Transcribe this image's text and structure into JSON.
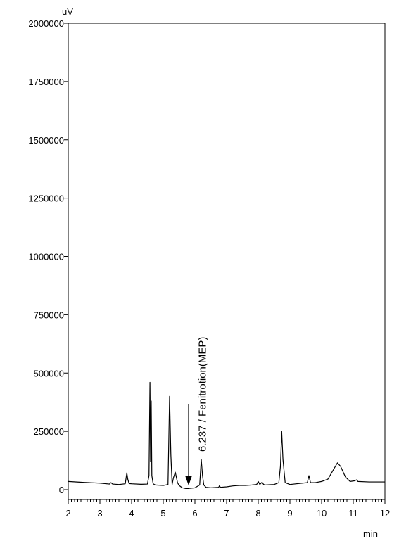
{
  "chart_data": {
    "type": "line",
    "title": "",
    "xlabel": "min",
    "ylabel": "uV",
    "xlim": [
      2,
      12
    ],
    "ylim": [
      0,
      2000000
    ],
    "grid": false,
    "x_ticks": [
      2,
      3,
      4,
      5,
      6,
      7,
      8,
      9,
      10,
      11,
      12
    ],
    "x_tick_labels": [
      "2",
      "3",
      "4",
      "5",
      "6",
      "7",
      "8",
      "9",
      "10",
      "11",
      "12"
    ],
    "y_ticks": [
      0,
      250000,
      500000,
      750000,
      1000000,
      1250000,
      1500000,
      1750000,
      2000000
    ],
    "y_tick_labels": [
      "0",
      "250000",
      "500000",
      "750000",
      "1000000",
      "1250000",
      "1500000",
      "1750000",
      "2000000"
    ],
    "series": [
      {
        "x": [
          2.0,
          2.5,
          3.0,
          3.3,
          3.35,
          3.4,
          3.6,
          3.8,
          3.85,
          3.88,
          3.92,
          4.0,
          4.3,
          4.5,
          4.55,
          4.58,
          4.6,
          4.62,
          4.64,
          4.68,
          4.75,
          5.0,
          5.15,
          5.2,
          5.24,
          5.28,
          5.32,
          5.38,
          5.45,
          5.5,
          5.6,
          5.7,
          5.8,
          6.0,
          6.15,
          6.2,
          6.24,
          6.28,
          6.35,
          6.5,
          6.75,
          6.78,
          6.8,
          7.0,
          7.2,
          7.4,
          7.6,
          7.8,
          7.95,
          8.0,
          8.05,
          8.12,
          8.17,
          8.22,
          8.5,
          8.65,
          8.7,
          8.74,
          8.78,
          8.85,
          9.0,
          9.2,
          9.4,
          9.55,
          9.6,
          9.65,
          9.8,
          10.0,
          10.2,
          10.35,
          10.5,
          10.6,
          10.75,
          10.9,
          11.05,
          11.1,
          11.15,
          11.5,
          12.0
        ],
        "y": [
          35000,
          31000,
          28000,
          24000,
          30000,
          24000,
          22000,
          25000,
          72000,
          45000,
          26000,
          25000,
          23000,
          24000,
          60000,
          460000,
          120000,
          380000,
          60000,
          25000,
          20000,
          18000,
          22000,
          400000,
          150000,
          22000,
          50000,
          75000,
          30000,
          18000,
          8000,
          5000,
          5000,
          8000,
          20000,
          130000,
          60000,
          20000,
          10000,
          8000,
          10000,
          18000,
          10000,
          12000,
          16000,
          18000,
          18000,
          20000,
          22000,
          35000,
          22000,
          32000,
          22000,
          20000,
          22000,
          30000,
          100000,
          250000,
          130000,
          30000,
          22000,
          25000,
          28000,
          30000,
          60000,
          30000,
          30000,
          35000,
          45000,
          80000,
          115000,
          100000,
          55000,
          35000,
          38000,
          42000,
          35000,
          33000,
          33000
        ]
      }
    ],
    "annotations": [
      {
        "text": "6.237 / Fenitrotion(MEP)",
        "x": 6.237
      }
    ]
  }
}
